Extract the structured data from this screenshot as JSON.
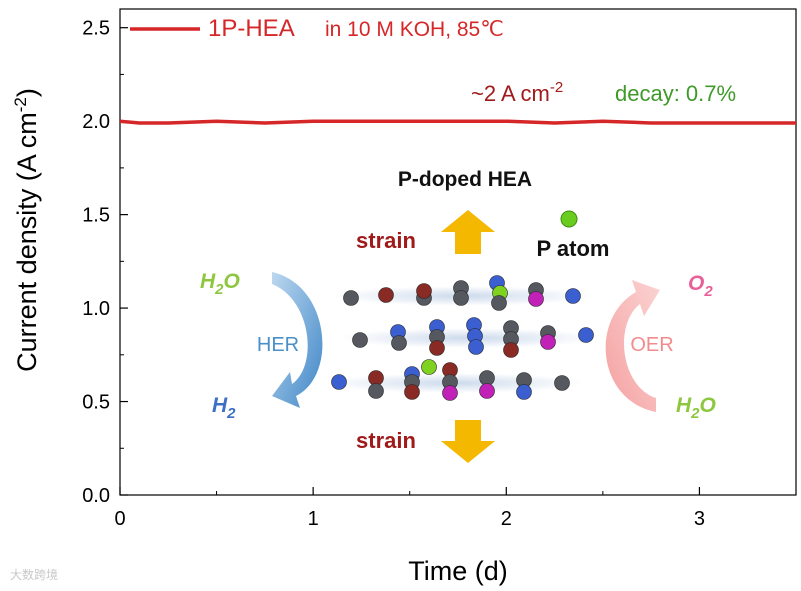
{
  "chart_data": {
    "type": "line",
    "title": "",
    "xlabel": "Time (d)",
    "ylabel_main": "Current density (A cm",
    "ylabel_sup": "-2",
    "ylabel_close": ")",
    "xlim": [
      0,
      3.5
    ],
    "ylim": [
      0,
      2.6
    ],
    "x_ticks": [
      0,
      1,
      2,
      3
    ],
    "x_tick_labels": [
      "0",
      "1",
      "2",
      "3"
    ],
    "y_ticks": [
      0.0,
      0.5,
      1.0,
      1.5,
      2.0,
      2.5
    ],
    "y_tick_labels": [
      "0.0",
      "0.5",
      "1.0",
      "1.5",
      "2.0",
      "2.5"
    ],
    "series": [
      {
        "name": "1P-HEA",
        "color": "#d62728",
        "x": [
          0,
          0.1,
          0.25,
          0.5,
          0.75,
          1.0,
          1.25,
          1.5,
          1.75,
          2.0,
          2.25,
          2.5,
          2.75,
          3.0,
          3.25,
          3.5
        ],
        "y": [
          2.0,
          1.99,
          1.99,
          2.0,
          1.99,
          2.0,
          2.0,
          2.0,
          2.0,
          2.0,
          1.99,
          2.0,
          1.99,
          1.99,
          1.99,
          1.99
        ]
      }
    ],
    "legend": {
      "name": "1P-HEA",
      "condition": "in 10 M KOH, 85℃",
      "placement": "top-left"
    },
    "annotations": {
      "current": "~2 A cm",
      "current_sup": "-2",
      "decay": "decay: 0.7%"
    },
    "inset": {
      "title": "P-doped HEA",
      "p_atom": "P atom",
      "strain_top": "strain",
      "strain_bottom": "strain",
      "her_label": "HER",
      "oer_label": "OER",
      "her_in": "H",
      "her_in_sub": "2",
      "her_in_tail": "O",
      "her_out": "H",
      "her_out_sub": "2",
      "oer_in": "H",
      "oer_in_sub": "2",
      "oer_in_tail": "O",
      "oer_out": "O",
      "oer_out_sub": "2"
    },
    "colors": {
      "line": "#d62728",
      "dark_red": "#a01a1a",
      "green": "#3f9a2a",
      "h2o": "#8dc63f",
      "her_blue": "#4a90c8",
      "h2_blue": "#3d6fc4",
      "oer_pink": "#f28c8c",
      "o2_pink": "#e8609a",
      "arrow_yellow": "#f5b800"
    }
  },
  "watermark": "大数跨境"
}
